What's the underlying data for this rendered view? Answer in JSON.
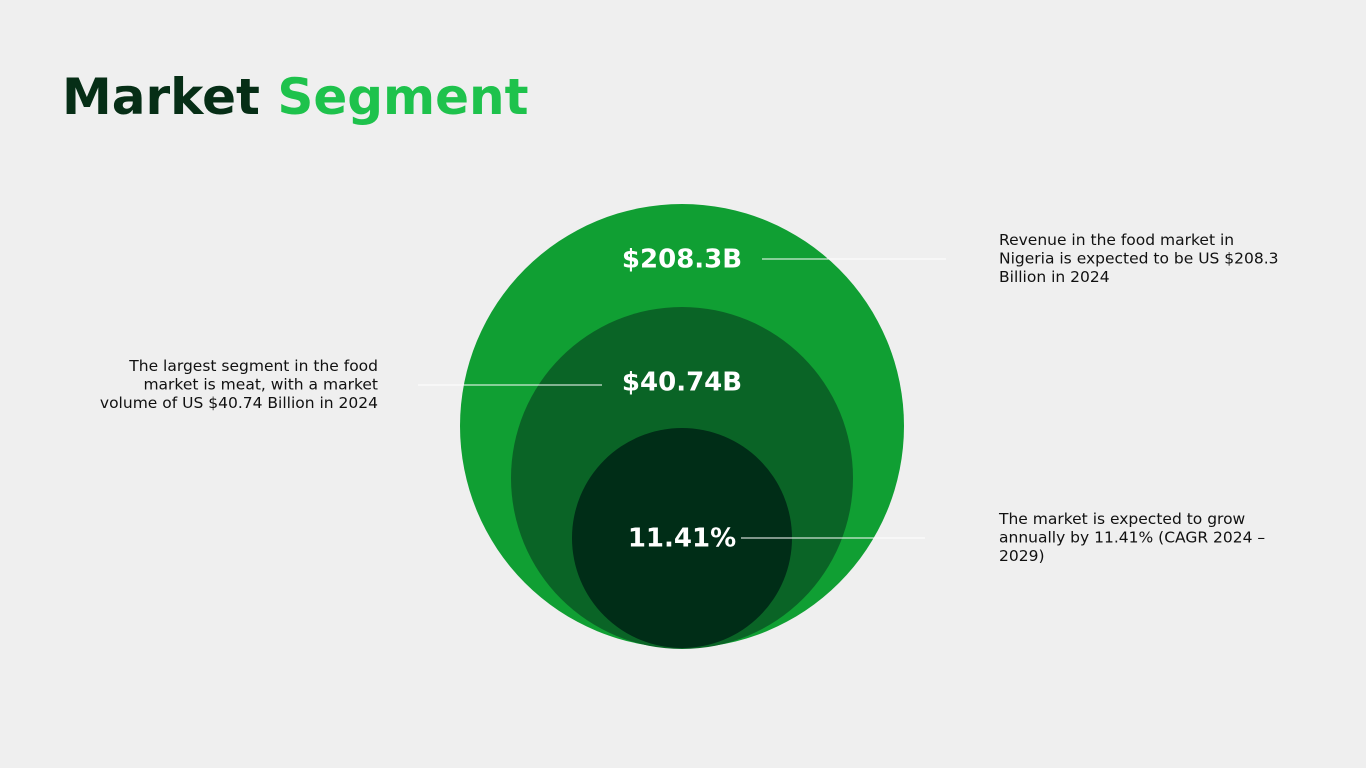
{
  "header": {
    "title_part1": "Market",
    "title_part2": "Segment"
  },
  "circles": [
    {
      "label": "$208.3B",
      "description": [
        "Revenue in the food market in",
        "Nigeria is expected to be US $208.3",
        "Billion in 2024"
      ]
    },
    {
      "label": "$40.74B",
      "description": [
        "The largest segment in the food",
        "market is meat, with a market",
        "volume of US $40.74 Billion in 2024"
      ]
    },
    {
      "label": "11.41%",
      "description": [
        "The market is expected to grow",
        "annually by 11.41% (CAGR 2024 –",
        "2029)"
      ]
    }
  ]
}
